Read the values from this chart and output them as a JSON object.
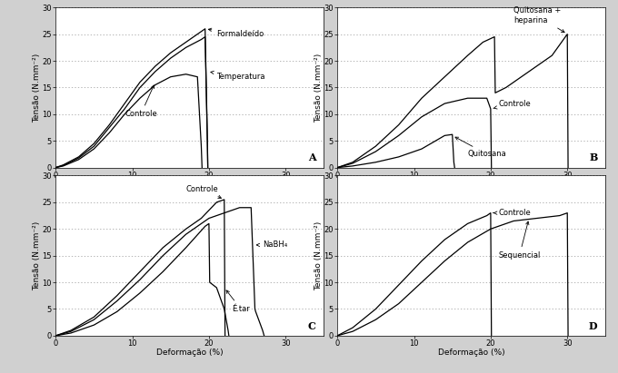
{
  "fig_bg": "#d0d0d0",
  "panel_bg": "#ffffff",
  "grid_color": "#999999",
  "line_color": "#111111",
  "axis_label_fontsize": 6.5,
  "tick_fontsize": 6,
  "annotation_fontsize": 6,
  "panel_label_fontsize": 8,
  "xlabel": "Deformação (%)",
  "ylabel": "Tensão (N.mm⁻²)",
  "xlim": [
    0,
    35
  ],
  "ylim": [
    0,
    30
  ],
  "xticks": [
    0,
    10,
    20,
    30
  ],
  "yticks": [
    0,
    5,
    10,
    15,
    20,
    25,
    30
  ],
  "panels": [
    "A",
    "B",
    "C",
    "D"
  ],
  "A_formaldeido_x": [
    0,
    1,
    3,
    5,
    7,
    9,
    11,
    13,
    15,
    17,
    19,
    19.5,
    19.8,
    19.85
  ],
  "A_formaldeido_y": [
    0,
    0.5,
    2,
    4.5,
    8,
    12,
    16,
    19,
    21.5,
    23.5,
    25.5,
    26,
    5,
    0
  ],
  "A_temperatura_x": [
    0,
    1,
    3,
    5,
    7,
    9,
    11,
    13,
    15,
    17,
    19,
    19.5,
    19.8,
    19.85
  ],
  "A_temperatura_y": [
    0,
    0.4,
    1.8,
    4,
    7.5,
    11,
    15,
    18,
    20.5,
    22.5,
    24,
    24.5,
    4.5,
    0
  ],
  "A_controle_x": [
    0,
    1,
    3,
    5,
    7,
    9,
    11,
    13,
    15,
    17,
    18.5,
    19,
    19.1
  ],
  "A_controle_y": [
    0,
    0.3,
    1.5,
    3.5,
    6.5,
    10,
    13,
    15.5,
    17,
    17.5,
    17,
    4,
    0
  ],
  "B_quihep_x": [
    0,
    2,
    5,
    8,
    11,
    14,
    17,
    19,
    20.5,
    20.6,
    22,
    25,
    28,
    29,
    30,
    30.1
  ],
  "B_quihep_y": [
    0,
    1,
    4,
    8,
    13,
    17,
    21,
    23.5,
    24.5,
    14,
    15,
    18,
    21,
    23,
    25,
    0
  ],
  "B_controle_x": [
    0,
    2,
    5,
    8,
    11,
    14,
    17,
    19.5,
    20,
    20.1
  ],
  "B_controle_y": [
    0,
    0.8,
    3,
    6,
    9.5,
    12,
    13,
    13,
    11,
    0
  ],
  "B_quitosana_x": [
    0,
    2,
    5,
    8,
    11,
    14,
    15,
    15.2,
    15.3
  ],
  "B_quitosana_y": [
    0,
    0.3,
    1,
    2,
    3.5,
    6,
    6.2,
    1,
    0
  ],
  "C_controle_x": [
    0,
    2,
    5,
    8,
    11,
    14,
    17,
    19,
    21,
    22,
    22.1
  ],
  "C_controle_y": [
    0,
    1,
    3.5,
    7.5,
    12,
    16.5,
    20,
    22,
    25,
    25.5,
    0
  ],
  "C_NaBH4_x": [
    0,
    2,
    5,
    8,
    11,
    14,
    17,
    20,
    22,
    24,
    25.5,
    26,
    26.1,
    27,
    27.2
  ],
  "C_NaBH4_y": [
    0,
    0.8,
    3,
    6.5,
    10.5,
    15,
    19,
    22,
    23,
    24,
    24,
    5,
    4.5,
    1,
    0
  ],
  "C_Etar_x": [
    0,
    2,
    5,
    8,
    11,
    14,
    17,
    19.5,
    20,
    20.1,
    21,
    22,
    22.5,
    22.6
  ],
  "C_Etar_y": [
    0,
    0.5,
    2,
    4.5,
    8,
    12,
    16.5,
    20.5,
    21,
    10,
    9,
    5,
    1,
    0
  ],
  "D_controle_x": [
    0,
    2,
    5,
    8,
    11,
    14,
    17,
    19.5,
    20,
    20.1
  ],
  "D_controle_y": [
    0,
    1.5,
    5,
    9.5,
    14,
    18,
    21,
    22.5,
    23,
    0
  ],
  "D_sequencial_x": [
    0,
    2,
    5,
    8,
    11,
    14,
    17,
    20,
    23,
    26,
    29,
    30,
    30.1
  ],
  "D_sequencial_y": [
    0,
    0.8,
    3,
    6,
    10,
    14,
    17.5,
    20,
    21.5,
    22,
    22.5,
    23,
    0
  ]
}
